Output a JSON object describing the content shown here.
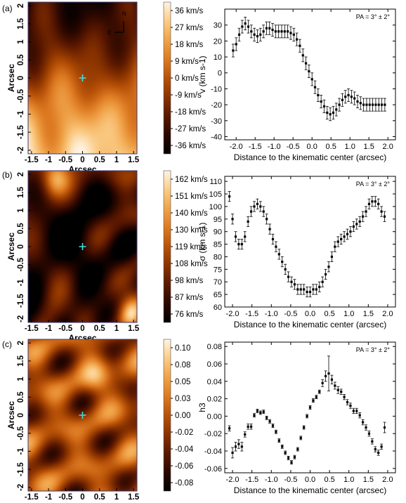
{
  "panel_labels": [
    "(a)",
    "(b)",
    "(c)"
  ],
  "colors": {
    "colormap": [
      "#000000",
      "#2a0700",
      "#5a1800",
      "#8a3300",
      "#b85208",
      "#dd7a22",
      "#f0a349",
      "#fbcc86",
      "#fff4e4"
    ],
    "cross": "#40e0e0",
    "axis": "#000000"
  },
  "compass": {
    "north": "N",
    "east": "E"
  },
  "chart_data": [
    {
      "id": "map-a",
      "type": "heatmap",
      "xlabel": "Arcsec",
      "ylabel": "Arcsec",
      "xticks": [
        "-1.5",
        "-1",
        "-0.5",
        "0",
        "0.5",
        "1",
        "1.5"
      ],
      "yticks": [
        "2",
        "1.5",
        "1",
        "0.5",
        "0",
        "-0.5",
        "-1",
        "-1.5",
        "-2"
      ],
      "xlim": [
        -1.6,
        1.6
      ],
      "ylim": [
        -2.1,
        2.1
      ],
      "colorbar_labels": [
        "36 km/s",
        "27 km/s",
        "18 km/s",
        "9 km/s",
        "0 km/s",
        "-9 km/s",
        "-18 km/s",
        "-27 km/s",
        "-36 km/s"
      ],
      "colorbar_range": [
        -40,
        40
      ],
      "kinematic_center": [
        0,
        0
      ],
      "pattern": "velocity"
    },
    {
      "id": "profile-a",
      "type": "scatter",
      "xlabel": "Distance to the kinematic center (arcsec)",
      "ylabel": "v (km s-1)",
      "annotation": "PA = 3° ± 2°",
      "xlim": [
        -2.3,
        2.2
      ],
      "ylim": [
        -42,
        40
      ],
      "xticks": [
        -2.0,
        -1.5,
        -1.0,
        -0.5,
        0.0,
        0.5,
        1.0,
        1.5,
        2.0
      ],
      "xtick_labels": [
        "-2.0",
        "-1.5",
        "-1.0",
        "-0.5",
        "0.0",
        "0.5",
        "1.0",
        "1.5",
        "2.0"
      ],
      "yticks": [
        30,
        20,
        10,
        0,
        -10,
        -20,
        -30,
        -40
      ],
      "ytick_labels": [
        "30",
        "20",
        "10",
        "0",
        "-10",
        "-20",
        "-30",
        "-40"
      ],
      "points": [
        {
          "x": -2.08,
          "y": 14,
          "e": 4
        },
        {
          "x": -2.0,
          "y": 18,
          "e": 4
        },
        {
          "x": -1.92,
          "y": 24,
          "e": 4
        },
        {
          "x": -1.84,
          "y": 29,
          "e": 4
        },
        {
          "x": -1.76,
          "y": 31,
          "e": 4
        },
        {
          "x": -1.68,
          "y": 29,
          "e": 4
        },
        {
          "x": -1.6,
          "y": 26,
          "e": 4
        },
        {
          "x": -1.52,
          "y": 24,
          "e": 4
        },
        {
          "x": -1.44,
          "y": 23,
          "e": 4
        },
        {
          "x": -1.36,
          "y": 24,
          "e": 4
        },
        {
          "x": -1.28,
          "y": 26,
          "e": 4
        },
        {
          "x": -1.2,
          "y": 28,
          "e": 4
        },
        {
          "x": -1.12,
          "y": 28,
          "e": 4
        },
        {
          "x": -1.04,
          "y": 27,
          "e": 4
        },
        {
          "x": -0.96,
          "y": 26,
          "e": 4
        },
        {
          "x": -0.88,
          "y": 26,
          "e": 4
        },
        {
          "x": -0.8,
          "y": 26,
          "e": 4
        },
        {
          "x": -0.72,
          "y": 26,
          "e": 4
        },
        {
          "x": -0.64,
          "y": 26,
          "e": 4
        },
        {
          "x": -0.56,
          "y": 25,
          "e": 4
        },
        {
          "x": -0.48,
          "y": 24,
          "e": 4
        },
        {
          "x": -0.4,
          "y": 21,
          "e": 4
        },
        {
          "x": -0.32,
          "y": 17,
          "e": 4
        },
        {
          "x": -0.24,
          "y": 11,
          "e": 4
        },
        {
          "x": -0.16,
          "y": 6,
          "e": 4
        },
        {
          "x": -0.08,
          "y": 1,
          "e": 4
        },
        {
          "x": 0.0,
          "y": -4,
          "e": 4
        },
        {
          "x": 0.08,
          "y": -9,
          "e": 4
        },
        {
          "x": 0.16,
          "y": -14,
          "e": 4
        },
        {
          "x": 0.24,
          "y": -18,
          "e": 4
        },
        {
          "x": 0.32,
          "y": -21,
          "e": 4
        },
        {
          "x": 0.4,
          "y": -25,
          "e": 4
        },
        {
          "x": 0.48,
          "y": -26,
          "e": 4
        },
        {
          "x": 0.56,
          "y": -25,
          "e": 4
        },
        {
          "x": 0.64,
          "y": -23,
          "e": 4
        },
        {
          "x": 0.72,
          "y": -20,
          "e": 4
        },
        {
          "x": 0.8,
          "y": -17,
          "e": 4
        },
        {
          "x": 0.88,
          "y": -15,
          "e": 4
        },
        {
          "x": 0.96,
          "y": -14,
          "e": 4
        },
        {
          "x": 1.04,
          "y": -15,
          "e": 4
        },
        {
          "x": 1.12,
          "y": -16,
          "e": 4
        },
        {
          "x": 1.2,
          "y": -18,
          "e": 4
        },
        {
          "x": 1.28,
          "y": -19,
          "e": 4
        },
        {
          "x": 1.36,
          "y": -20,
          "e": 4
        },
        {
          "x": 1.44,
          "y": -20,
          "e": 4
        },
        {
          "x": 1.52,
          "y": -20,
          "e": 4
        },
        {
          "x": 1.6,
          "y": -20,
          "e": 4
        },
        {
          "x": 1.68,
          "y": -20,
          "e": 4
        },
        {
          "x": 1.76,
          "y": -20,
          "e": 4
        },
        {
          "x": 1.84,
          "y": -20,
          "e": 4
        },
        {
          "x": 1.92,
          "y": -20,
          "e": 4
        }
      ]
    },
    {
      "id": "map-b",
      "type": "heatmap",
      "xlabel": "Arcsec",
      "ylabel": "Arcsec",
      "xticks": [
        "-1.5",
        "-1",
        "-0.5",
        "0",
        "0.5",
        "1",
        "1.5"
      ],
      "yticks": [
        "2",
        "1.5",
        "1",
        "0.5",
        "0",
        "-0.5",
        "-1",
        "-1.5",
        "-2"
      ],
      "xlim": [
        -1.6,
        1.6
      ],
      "ylim": [
        -2.1,
        2.1
      ],
      "colorbar_labels": [
        "162 km/s",
        "151 km/s",
        "140 km/s",
        "130 km/s",
        "119 km/s",
        "108 km/s",
        "98 km/s",
        "87 km/s",
        "76 km/s"
      ],
      "colorbar_range": [
        70,
        168
      ],
      "kinematic_center": [
        0,
        0
      ],
      "pattern": "dispersion"
    },
    {
      "id": "profile-b",
      "type": "scatter",
      "xlabel": "Distance to the kinematic center (arcsec)",
      "ylabel": "σ (km s-1)",
      "annotation": "PA = 3° ± 2°",
      "xlim": [
        -2.2,
        2.2
      ],
      "ylim": [
        60,
        112
      ],
      "xticks": [
        -2.0,
        -1.5,
        -1.0,
        -0.5,
        0.0,
        0.5,
        1.0,
        1.5,
        2.0
      ],
      "xtick_labels": [
        "-2.0",
        "-1.5",
        "-1.0",
        "-0.5",
        "0.0",
        "0.5",
        "1.0",
        "1.5",
        "2.0"
      ],
      "yticks": [
        110,
        105,
        100,
        95,
        90,
        85,
        80,
        75,
        70,
        65,
        60
      ],
      "ytick_labels": [
        "110",
        "105",
        "100",
        "95",
        "90",
        "85",
        "80",
        "75",
        "70",
        "65",
        "60"
      ],
      "points": [
        {
          "x": -2.08,
          "y": 104,
          "e": 2
        },
        {
          "x": -2.0,
          "y": 95,
          "e": 2
        },
        {
          "x": -1.92,
          "y": 88,
          "e": 2
        },
        {
          "x": -1.84,
          "y": 85,
          "e": 2
        },
        {
          "x": -1.76,
          "y": 85,
          "e": 2
        },
        {
          "x": -1.68,
          "y": 88,
          "e": 2
        },
        {
          "x": -1.6,
          "y": 94,
          "e": 2
        },
        {
          "x": -1.52,
          "y": 98,
          "e": 2
        },
        {
          "x": -1.44,
          "y": 100,
          "e": 2
        },
        {
          "x": -1.36,
          "y": 101,
          "e": 2
        },
        {
          "x": -1.28,
          "y": 100,
          "e": 2
        },
        {
          "x": -1.2,
          "y": 98,
          "e": 2
        },
        {
          "x": -1.12,
          "y": 95,
          "e": 2
        },
        {
          "x": -1.04,
          "y": 91,
          "e": 2
        },
        {
          "x": -0.96,
          "y": 87,
          "e": 2
        },
        {
          "x": -0.88,
          "y": 84,
          "e": 2
        },
        {
          "x": -0.8,
          "y": 81,
          "e": 2
        },
        {
          "x": -0.72,
          "y": 78,
          "e": 2
        },
        {
          "x": -0.64,
          "y": 75,
          "e": 2
        },
        {
          "x": -0.56,
          "y": 72,
          "e": 2
        },
        {
          "x": -0.48,
          "y": 70,
          "e": 2
        },
        {
          "x": -0.4,
          "y": 69,
          "e": 2
        },
        {
          "x": -0.32,
          "y": 67,
          "e": 2
        },
        {
          "x": -0.24,
          "y": 67,
          "e": 2
        },
        {
          "x": -0.16,
          "y": 67,
          "e": 2
        },
        {
          "x": -0.08,
          "y": 66,
          "e": 2
        },
        {
          "x": 0.0,
          "y": 66,
          "e": 2
        },
        {
          "x": 0.08,
          "y": 67,
          "e": 2
        },
        {
          "x": 0.16,
          "y": 67,
          "e": 2
        },
        {
          "x": 0.24,
          "y": 68,
          "e": 2
        },
        {
          "x": 0.32,
          "y": 70,
          "e": 2
        },
        {
          "x": 0.4,
          "y": 73,
          "e": 2
        },
        {
          "x": 0.48,
          "y": 76,
          "e": 2
        },
        {
          "x": 0.56,
          "y": 80,
          "e": 2
        },
        {
          "x": 0.64,
          "y": 84,
          "e": 2
        },
        {
          "x": 0.72,
          "y": 86,
          "e": 2
        },
        {
          "x": 0.8,
          "y": 87,
          "e": 2
        },
        {
          "x": 0.88,
          "y": 88,
          "e": 2
        },
        {
          "x": 0.96,
          "y": 89,
          "e": 2
        },
        {
          "x": 1.04,
          "y": 90,
          "e": 2
        },
        {
          "x": 1.12,
          "y": 92,
          "e": 2
        },
        {
          "x": 1.2,
          "y": 93,
          "e": 2
        },
        {
          "x": 1.28,
          "y": 94,
          "e": 2
        },
        {
          "x": 1.36,
          "y": 96,
          "e": 2
        },
        {
          "x": 1.44,
          "y": 98,
          "e": 2
        },
        {
          "x": 1.52,
          "y": 101,
          "e": 2
        },
        {
          "x": 1.6,
          "y": 102,
          "e": 2
        },
        {
          "x": 1.68,
          "y": 102,
          "e": 2
        },
        {
          "x": 1.76,
          "y": 101,
          "e": 2
        },
        {
          "x": 1.84,
          "y": 98,
          "e": 2
        },
        {
          "x": 1.92,
          "y": 96,
          "e": 2
        }
      ]
    },
    {
      "id": "map-c",
      "type": "heatmap",
      "xlabel": "Arcsec",
      "ylabel": "Arcsec",
      "xticks": [
        "-1.5",
        "-1",
        "-0.5",
        "0",
        "0.5",
        "1",
        "1.5"
      ],
      "yticks": [
        "2",
        "1.5",
        "1",
        "0.5",
        "0",
        "-0.5",
        "-1",
        "-1.5",
        "-2"
      ],
      "xlim": [
        -1.6,
        1.6
      ],
      "ylim": [
        -2.1,
        2.1
      ],
      "colorbar_labels": [
        "0.10",
        "0.08",
        "0.05",
        "0.03",
        "0.00",
        "-0.02",
        "-0.04",
        "-0.06",
        "-0.08"
      ],
      "colorbar_range": [
        -0.1,
        0.12
      ],
      "kinematic_center": [
        0,
        0
      ],
      "pattern": "h3"
    },
    {
      "id": "profile-c",
      "type": "scatter",
      "xlabel": "Distance to the kinematic center (arcsec)",
      "ylabel": "h3",
      "annotation": "PA = 3° ± 2°",
      "xlim": [
        -2.2,
        2.2
      ],
      "ylim": [
        -0.065,
        0.085
      ],
      "xticks": [
        -2.0,
        -1.5,
        -1.0,
        -0.5,
        0.0,
        0.5,
        1.0,
        1.5,
        2.0
      ],
      "xtick_labels": [
        "-2.0",
        "-1.5",
        "-1.0",
        "-0.5",
        "0.0",
        "0.5",
        "1.0",
        "1.5",
        "2.0"
      ],
      "yticks": [
        0.08,
        0.06,
        0.04,
        0.02,
        0.0,
        -0.02,
        -0.04,
        -0.06
      ],
      "ytick_labels": [
        "0.08",
        "0.06",
        "0.04",
        "0.02",
        "0.00",
        "-0.02",
        "-0.04",
        "-0.06"
      ],
      "points": [
        {
          "x": -2.08,
          "y": -0.014,
          "e": 0.003
        },
        {
          "x": -2.0,
          "y": -0.042,
          "e": 0.006
        },
        {
          "x": -1.92,
          "y": -0.035,
          "e": 0.005
        },
        {
          "x": -1.84,
          "y": -0.032,
          "e": 0.005
        },
        {
          "x": -1.76,
          "y": -0.035,
          "e": 0.005
        },
        {
          "x": -1.68,
          "y": -0.021,
          "e": 0.003
        },
        {
          "x": -1.6,
          "y": -0.012,
          "e": 0.003
        },
        {
          "x": -1.52,
          "y": -0.012,
          "e": 0.003
        },
        {
          "x": -1.44,
          "y": 0.001,
          "e": 0.002
        },
        {
          "x": -1.36,
          "y": 0.006,
          "e": 0.002
        },
        {
          "x": -1.28,
          "y": 0.004,
          "e": 0.002
        },
        {
          "x": -1.2,
          "y": 0.005,
          "e": 0.002
        },
        {
          "x": -1.12,
          "y": -0.002,
          "e": 0.002
        },
        {
          "x": -1.04,
          "y": -0.006,
          "e": 0.002
        },
        {
          "x": -0.96,
          "y": -0.011,
          "e": 0.002
        },
        {
          "x": -0.88,
          "y": -0.018,
          "e": 0.002
        },
        {
          "x": -0.8,
          "y": -0.028,
          "e": 0.002
        },
        {
          "x": -0.72,
          "y": -0.035,
          "e": 0.002
        },
        {
          "x": -0.64,
          "y": -0.042,
          "e": 0.002
        },
        {
          "x": -0.56,
          "y": -0.048,
          "e": 0.002
        },
        {
          "x": -0.48,
          "y": -0.053,
          "e": 0.002
        },
        {
          "x": -0.4,
          "y": -0.047,
          "e": 0.002
        },
        {
          "x": -0.32,
          "y": -0.038,
          "e": 0.002
        },
        {
          "x": -0.24,
          "y": -0.025,
          "e": 0.002
        },
        {
          "x": -0.16,
          "y": -0.013,
          "e": 0.002
        },
        {
          "x": -0.08,
          "y": 0.0,
          "e": 0.002
        },
        {
          "x": 0.0,
          "y": 0.01,
          "e": 0.002
        },
        {
          "x": 0.08,
          "y": 0.018,
          "e": 0.002
        },
        {
          "x": 0.16,
          "y": 0.022,
          "e": 0.002
        },
        {
          "x": 0.24,
          "y": 0.028,
          "e": 0.002
        },
        {
          "x": 0.32,
          "y": 0.038,
          "e": 0.004
        },
        {
          "x": 0.4,
          "y": 0.046,
          "e": 0.006
        },
        {
          "x": 0.48,
          "y": 0.049,
          "e": 0.02
        },
        {
          "x": 0.56,
          "y": 0.042,
          "e": 0.005
        },
        {
          "x": 0.64,
          "y": 0.035,
          "e": 0.004
        },
        {
          "x": 0.72,
          "y": 0.03,
          "e": 0.004
        },
        {
          "x": 0.8,
          "y": 0.028,
          "e": 0.003
        },
        {
          "x": 0.88,
          "y": 0.022,
          "e": 0.003
        },
        {
          "x": 0.96,
          "y": 0.016,
          "e": 0.003
        },
        {
          "x": 1.04,
          "y": 0.012,
          "e": 0.003
        },
        {
          "x": 1.12,
          "y": 0.006,
          "e": 0.003
        },
        {
          "x": 1.2,
          "y": 0.006,
          "e": 0.003
        },
        {
          "x": 1.28,
          "y": 0.001,
          "e": 0.003
        },
        {
          "x": 1.36,
          "y": -0.007,
          "e": 0.003
        },
        {
          "x": 1.44,
          "y": -0.013,
          "e": 0.003
        },
        {
          "x": 1.52,
          "y": -0.02,
          "e": 0.003
        },
        {
          "x": 1.6,
          "y": -0.029,
          "e": 0.003
        },
        {
          "x": 1.68,
          "y": -0.038,
          "e": 0.003
        },
        {
          "x": 1.76,
          "y": -0.042,
          "e": 0.003
        },
        {
          "x": 1.84,
          "y": -0.035,
          "e": 0.003
        },
        {
          "x": 1.92,
          "y": -0.013,
          "e": 0.006
        }
      ]
    }
  ]
}
